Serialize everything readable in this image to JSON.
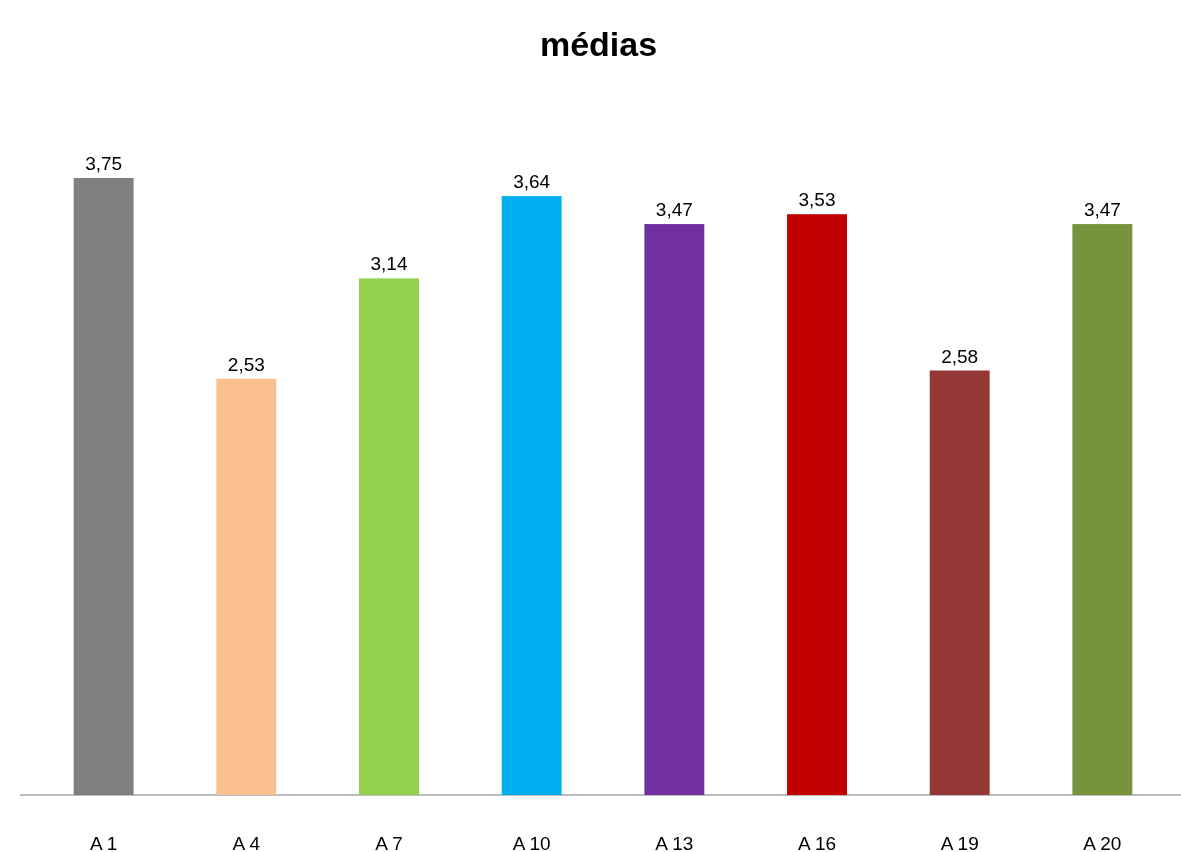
{
  "chart_data": {
    "type": "bar",
    "title": "médias",
    "categories": [
      "A 1",
      "A 4",
      "A 7",
      "A 10",
      "A 13",
      "A 16",
      "A 19",
      "A 20"
    ],
    "values": [
      3.75,
      2.53,
      3.14,
      3.64,
      3.47,
      3.53,
      2.58,
      3.47
    ],
    "value_labels": [
      "3,75",
      "2,53",
      "3,14",
      "3,64",
      "3,47",
      "3,53",
      "2,58",
      "3,47"
    ],
    "colors": [
      "#7f7f7f",
      "#fac090",
      "#92d050",
      "#00b0f0",
      "#7030a0",
      "#c00000",
      "#953735",
      "#77933c"
    ]
  }
}
